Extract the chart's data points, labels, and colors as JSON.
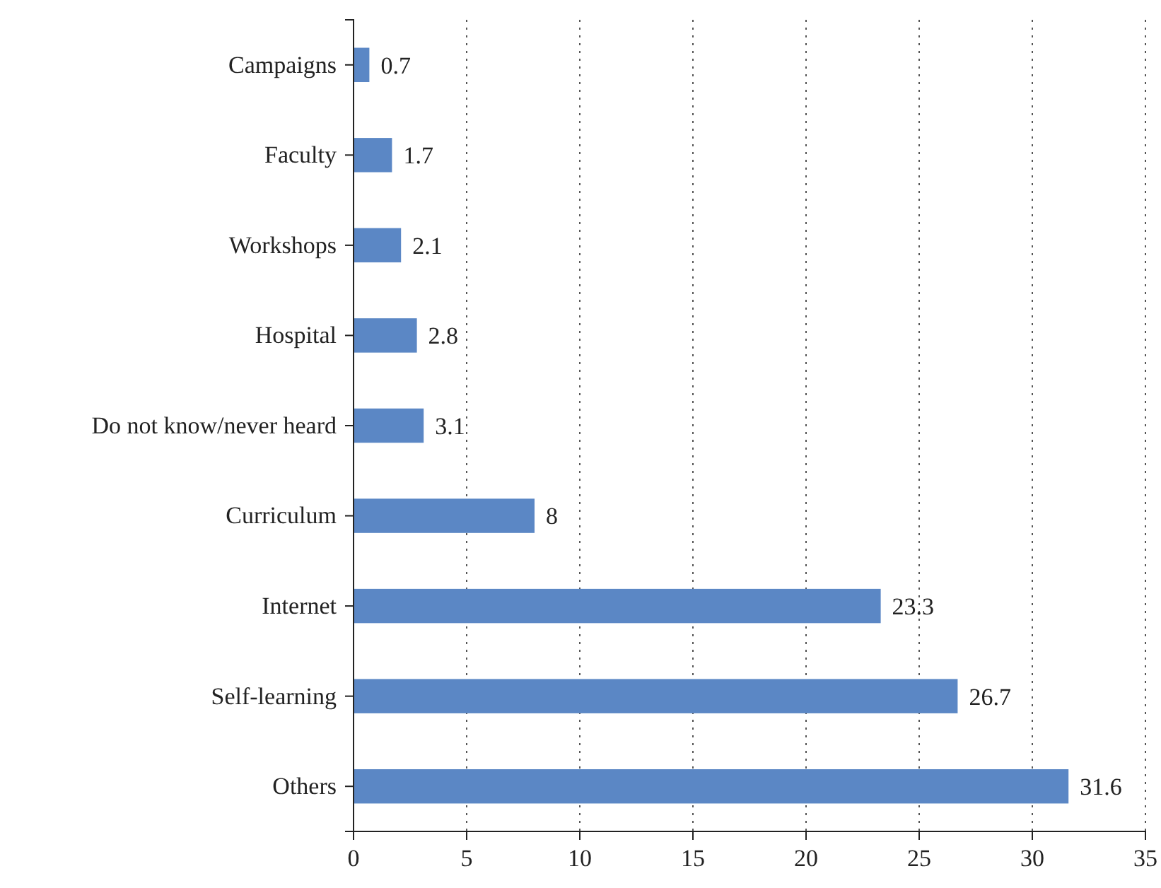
{
  "chart_data": {
    "type": "bar",
    "orientation": "horizontal",
    "categories": [
      "Campaigns",
      "Faculty",
      "Workshops",
      "Hospital",
      "Do not know/never heard",
      "Curriculum",
      "Internet",
      "Self-learning",
      "Others"
    ],
    "values": [
      0.7,
      1.7,
      2.1,
      2.8,
      3.1,
      8,
      23.3,
      26.7,
      31.6
    ],
    "color": "#5b87c5",
    "xlim": [
      0,
      35
    ],
    "xticks": [
      0,
      5,
      10,
      15,
      20,
      25,
      30,
      35
    ],
    "grid": "x",
    "data_labels": true
  }
}
